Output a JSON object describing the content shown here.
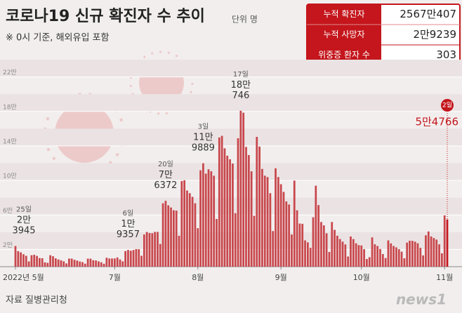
{
  "chart_data": {
    "type": "bar",
    "title": "코로나19 신규 확진자 수 추이",
    "unit": "단위 명",
    "subtitle": "※ 0시 기준, 해외유입 포함",
    "color": "#c8474c",
    "highlight_color": "#c4161c",
    "ylim": [
      0,
      240000
    ],
    "yticks": [
      {
        "value": 20000,
        "label": "2만"
      },
      {
        "value": 60000,
        "label": "6만"
      },
      {
        "value": 100000,
        "label": "10만"
      },
      {
        "value": 140000,
        "label": "14만"
      },
      {
        "value": 180000,
        "label": "18만"
      },
      {
        "value": 220000,
        "label": "22만"
      }
    ],
    "grid": true,
    "categories": [
      "2022년 5월",
      null,
      null,
      null,
      null,
      null,
      null,
      null,
      null,
      null,
      null,
      null,
      null,
      null,
      null,
      null,
      null,
      null,
      null,
      null,
      null,
      null,
      null,
      null,
      null,
      null,
      null,
      null,
      null,
      null,
      null,
      null,
      null,
      null,
      null,
      null,
      null,
      "7월",
      null,
      null,
      null,
      null,
      null,
      null,
      null,
      null,
      null,
      null,
      null,
      null,
      null,
      null,
      null,
      null,
      null,
      null,
      null,
      null,
      null,
      null,
      null,
      null,
      null,
      null,
      null,
      null,
      null,
      null,
      "8월",
      null,
      null,
      null,
      null,
      null,
      null,
      null,
      null,
      null,
      null,
      null,
      null,
      null,
      null,
      null,
      null,
      null,
      null,
      null,
      null,
      null,
      null,
      null,
      null,
      null,
      null,
      null,
      null,
      null,
      null,
      "9월",
      null,
      null,
      null,
      null,
      null,
      null,
      null,
      null,
      null,
      null,
      null,
      null,
      null,
      null,
      null,
      null,
      null,
      null,
      null,
      null,
      null,
      null,
      null,
      null,
      null,
      null,
      null,
      null,
      null,
      "10월",
      null,
      null,
      null,
      null,
      null,
      null,
      null,
      null,
      null,
      null,
      null,
      null,
      null,
      null,
      null,
      null,
      null,
      null,
      null,
      null,
      null,
      null,
      null,
      null,
      null,
      null,
      null,
      null,
      null,
      null,
      "11월",
      null
    ],
    "values": [
      23945,
      18000,
      16600,
      14400,
      12600,
      6100,
      13300,
      13800,
      12500,
      10000,
      9800,
      5000,
      4500,
      13300,
      12100,
      9700,
      8400,
      7400,
      6200,
      3800,
      9400,
      9400,
      8000,
      7100,
      6000,
      5300,
      3500,
      9300,
      9300,
      7500,
      7200,
      6200,
      5100,
      3400,
      10400,
      9500,
      9500,
      9500,
      10700,
      8400,
      6200,
      18100,
      19357,
      18500,
      19300,
      20400,
      20300,
      12600,
      37300,
      40200,
      39000,
      38800,
      40300,
      40300,
      26300,
      73500,
      76372,
      71100,
      68600,
      65400,
      65000,
      35800,
      99300,
      100200,
      88300,
      85200,
      81000,
      73500,
      44600,
      111700,
      119889,
      107900,
      112900,
      110600,
      105400,
      55300,
      149800,
      151700,
      137200,
      128700,
      124500,
      119600,
      62000,
      148900,
      180746,
      178500,
      138800,
      129400,
      110600,
      59000,
      150500,
      139300,
      113300,
      105500,
      103900,
      85200,
      41300,
      114000,
      103900,
      95600,
      86700,
      75600,
      72100,
      37300,
      99800,
      65400,
      50000,
      49700,
      30500,
      28200,
      21800,
      57300,
      93900,
      71400,
      51800,
      47900,
      38700,
      17000,
      51800,
      42700,
      35900,
      32100,
      29000,
      25800,
      11800,
      35000,
      32000,
      27100,
      25000,
      24600,
      20300,
      8900,
      11000,
      34000,
      26000,
      24000,
      20500,
      14700,
      10000,
      30500,
      27000,
      24000,
      22400,
      20300,
      17400,
      9700,
      27900,
      30100,
      30000,
      29000,
      27100,
      21800,
      13100,
      36400,
      40800,
      35100,
      33200,
      31400,
      25900,
      15500,
      59500,
      54766
    ],
    "day_labels": [
      "25일",
      null,
      null,
      null,
      null,
      null,
      null,
      null,
      null,
      null,
      null,
      null,
      null,
      null,
      null,
      null,
      null,
      null,
      null,
      null,
      null,
      null,
      null,
      null,
      null,
      null,
      null,
      null,
      null,
      null,
      null,
      null,
      null,
      null,
      null,
      null,
      null,
      null,
      null,
      null,
      null,
      null,
      "6일",
      null,
      null,
      null,
      null,
      null,
      null,
      null,
      null,
      null,
      null,
      null,
      null,
      null,
      "20일",
      null,
      null,
      null,
      null,
      null,
      null,
      null,
      null,
      null,
      null,
      null,
      null,
      null,
      "3일",
      null,
      null,
      null,
      null,
      null,
      null,
      null,
      null,
      null,
      null,
      null,
      null,
      null,
      "17일",
      null,
      null,
      null,
      null,
      null,
      null,
      null,
      null,
      null,
      null,
      null,
      null,
      null,
      null,
      null,
      null,
      null,
      null,
      null,
      null,
      null,
      null,
      null,
      null,
      null,
      null,
      null,
      null,
      null,
      null,
      null,
      null,
      null,
      null,
      null,
      null,
      null,
      null,
      null,
      null,
      null,
      null,
      null,
      null,
      null,
      null,
      null,
      null,
      null,
      null,
      null,
      null,
      null,
      null,
      null,
      null,
      null,
      null,
      null,
      null,
      null,
      null,
      null,
      null,
      null,
      null,
      null,
      null,
      null,
      null,
      null,
      null,
      null,
      null,
      null,
      null,
      "2일"
    ],
    "value_labels": [
      "2만\n3945",
      null,
      null,
      null,
      null,
      null,
      null,
      null,
      null,
      null,
      null,
      null,
      null,
      null,
      null,
      null,
      null,
      null,
      null,
      null,
      null,
      null,
      null,
      null,
      null,
      null,
      null,
      null,
      null,
      null,
      null,
      null,
      null,
      null,
      null,
      null,
      null,
      null,
      null,
      null,
      null,
      null,
      "1만\n9357",
      null,
      null,
      null,
      null,
      null,
      null,
      null,
      null,
      null,
      null,
      null,
      null,
      null,
      "7만\n6372",
      null,
      null,
      null,
      null,
      null,
      null,
      null,
      null,
      null,
      null,
      null,
      null,
      null,
      "11만\n9889",
      null,
      null,
      null,
      null,
      null,
      null,
      null,
      null,
      null,
      null,
      null,
      null,
      null,
      "18만\n746",
      null,
      null,
      null,
      null,
      null,
      null,
      null,
      null,
      null,
      null,
      null,
      null,
      null,
      null,
      null,
      null,
      null,
      null,
      null,
      null,
      null,
      null,
      null,
      null,
      null,
      null,
      null,
      null,
      null,
      null,
      null,
      null,
      null,
      null,
      null,
      null,
      null,
      null,
      null,
      null,
      null,
      null,
      null,
      null,
      null,
      null,
      null,
      null,
      null,
      null,
      null,
      null,
      null,
      null,
      null,
      null,
      null,
      null,
      null,
      null,
      null,
      null,
      null,
      null,
      null,
      null,
      null,
      null,
      null,
      null,
      null,
      null,
      null,
      null,
      null,
      null,
      "5만4766"
    ]
  },
  "info_table": {
    "rows": [
      {
        "label": "누적 확진자",
        "value": "2567만407"
      },
      {
        "label": "누적 사망자",
        "value": "2만9239"
      },
      {
        "label": "위중증 환자 수",
        "value": "303"
      }
    ]
  },
  "footer": {
    "source": "자료 질병관리청",
    "logo": "news1"
  }
}
